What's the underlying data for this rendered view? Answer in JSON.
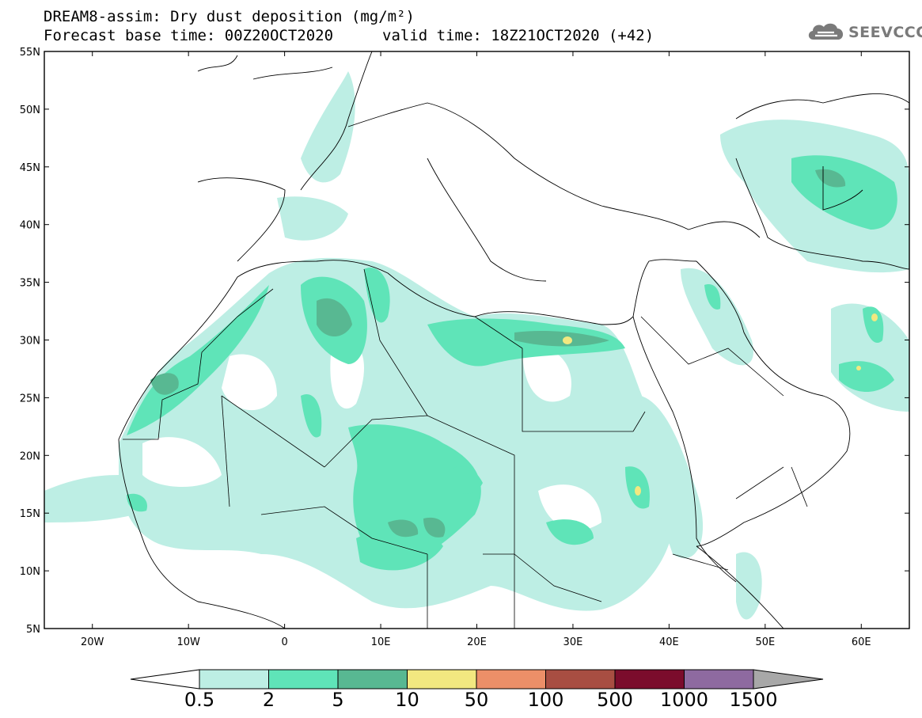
{
  "header": {
    "title": "DREAM8-assim: Dry dust deposition (mg/m²)",
    "base_time": "Forecast base time: 00Z20OCT2020",
    "valid_time": "valid time: 18Z21OCT2020 (+42)",
    "logo_text": "SEEVCCC"
  },
  "map": {
    "region": "North Africa, Europe and Middle East",
    "lat_labels": [
      "55N",
      "50N",
      "45N",
      "40N",
      "35N",
      "30N",
      "25N",
      "20N",
      "15N",
      "10N",
      "5N"
    ],
    "lon_labels": [
      "20W",
      "10W",
      "0",
      "10E",
      "20E",
      "30E",
      "40E",
      "50E",
      "60E"
    ],
    "lat_range": [
      5,
      55
    ],
    "lon_range": [
      -25,
      65
    ]
  },
  "colorbar": {
    "levels": [
      "0.5",
      "2",
      "5",
      "10",
      "50",
      "100",
      "500",
      "1000",
      "1500"
    ],
    "colors": [
      "#bdeee4",
      "#5fe4b8",
      "#58b892",
      "#f2e880",
      "#ec8f68",
      "#a84e42",
      "#7b0c2c",
      "#8e6aa0",
      "#a8a8a8"
    ],
    "under_color": "#ffffff",
    "over_color": "#a8a8a8"
  }
}
